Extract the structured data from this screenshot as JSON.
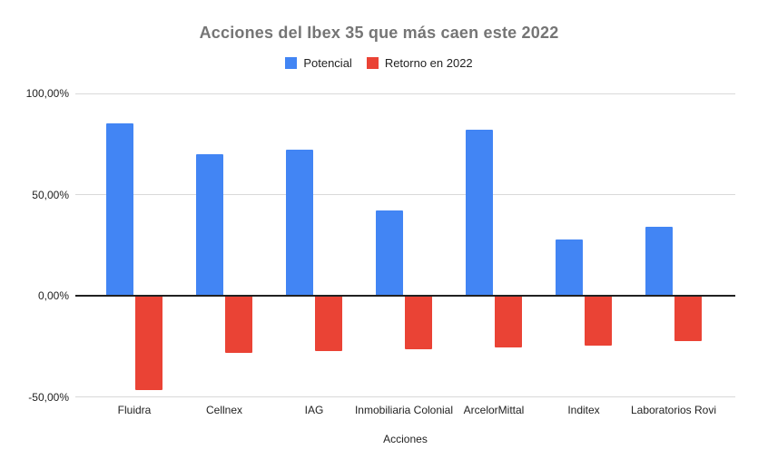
{
  "chart_data": {
    "type": "bar",
    "title": "Acciones del Ibex 35 que más caen este 2022",
    "xlabel": "Acciones",
    "ylabel": "",
    "categories": [
      "Fluidra",
      "Cellnex",
      "IAG",
      "Inmobiliaria Colonial",
      "ArcelorMittal",
      "Inditex",
      "Laboratorios Rovi"
    ],
    "series": [
      {
        "name": "Potencial",
        "color": "#4285F4",
        "values": [
          85,
          70,
          72,
          42,
          82,
          28,
          34
        ]
      },
      {
        "name": "Retorno en 2022",
        "color": "#EA4335",
        "values": [
          -46,
          -28,
          -27,
          -26,
          -25,
          -24,
          -22
        ]
      }
    ],
    "yticks": [
      {
        "label": "100,00%",
        "value": 100
      },
      {
        "label": "50,00%",
        "value": 50
      },
      {
        "label": "0,00%",
        "value": 0
      },
      {
        "label": "-50,00%",
        "value": -50
      }
    ],
    "ylim": [
      -50,
      100
    ],
    "value_unit": "%",
    "legend_position": "top",
    "grid": true
  },
  "colors": {
    "background": "#ffffff",
    "title_text": "#757575",
    "axis_text": "#222222",
    "gridline": "#d9d9d9",
    "zero_line": "#212121",
    "series_potencial": "#4285F4",
    "series_retorno": "#EA4335"
  }
}
